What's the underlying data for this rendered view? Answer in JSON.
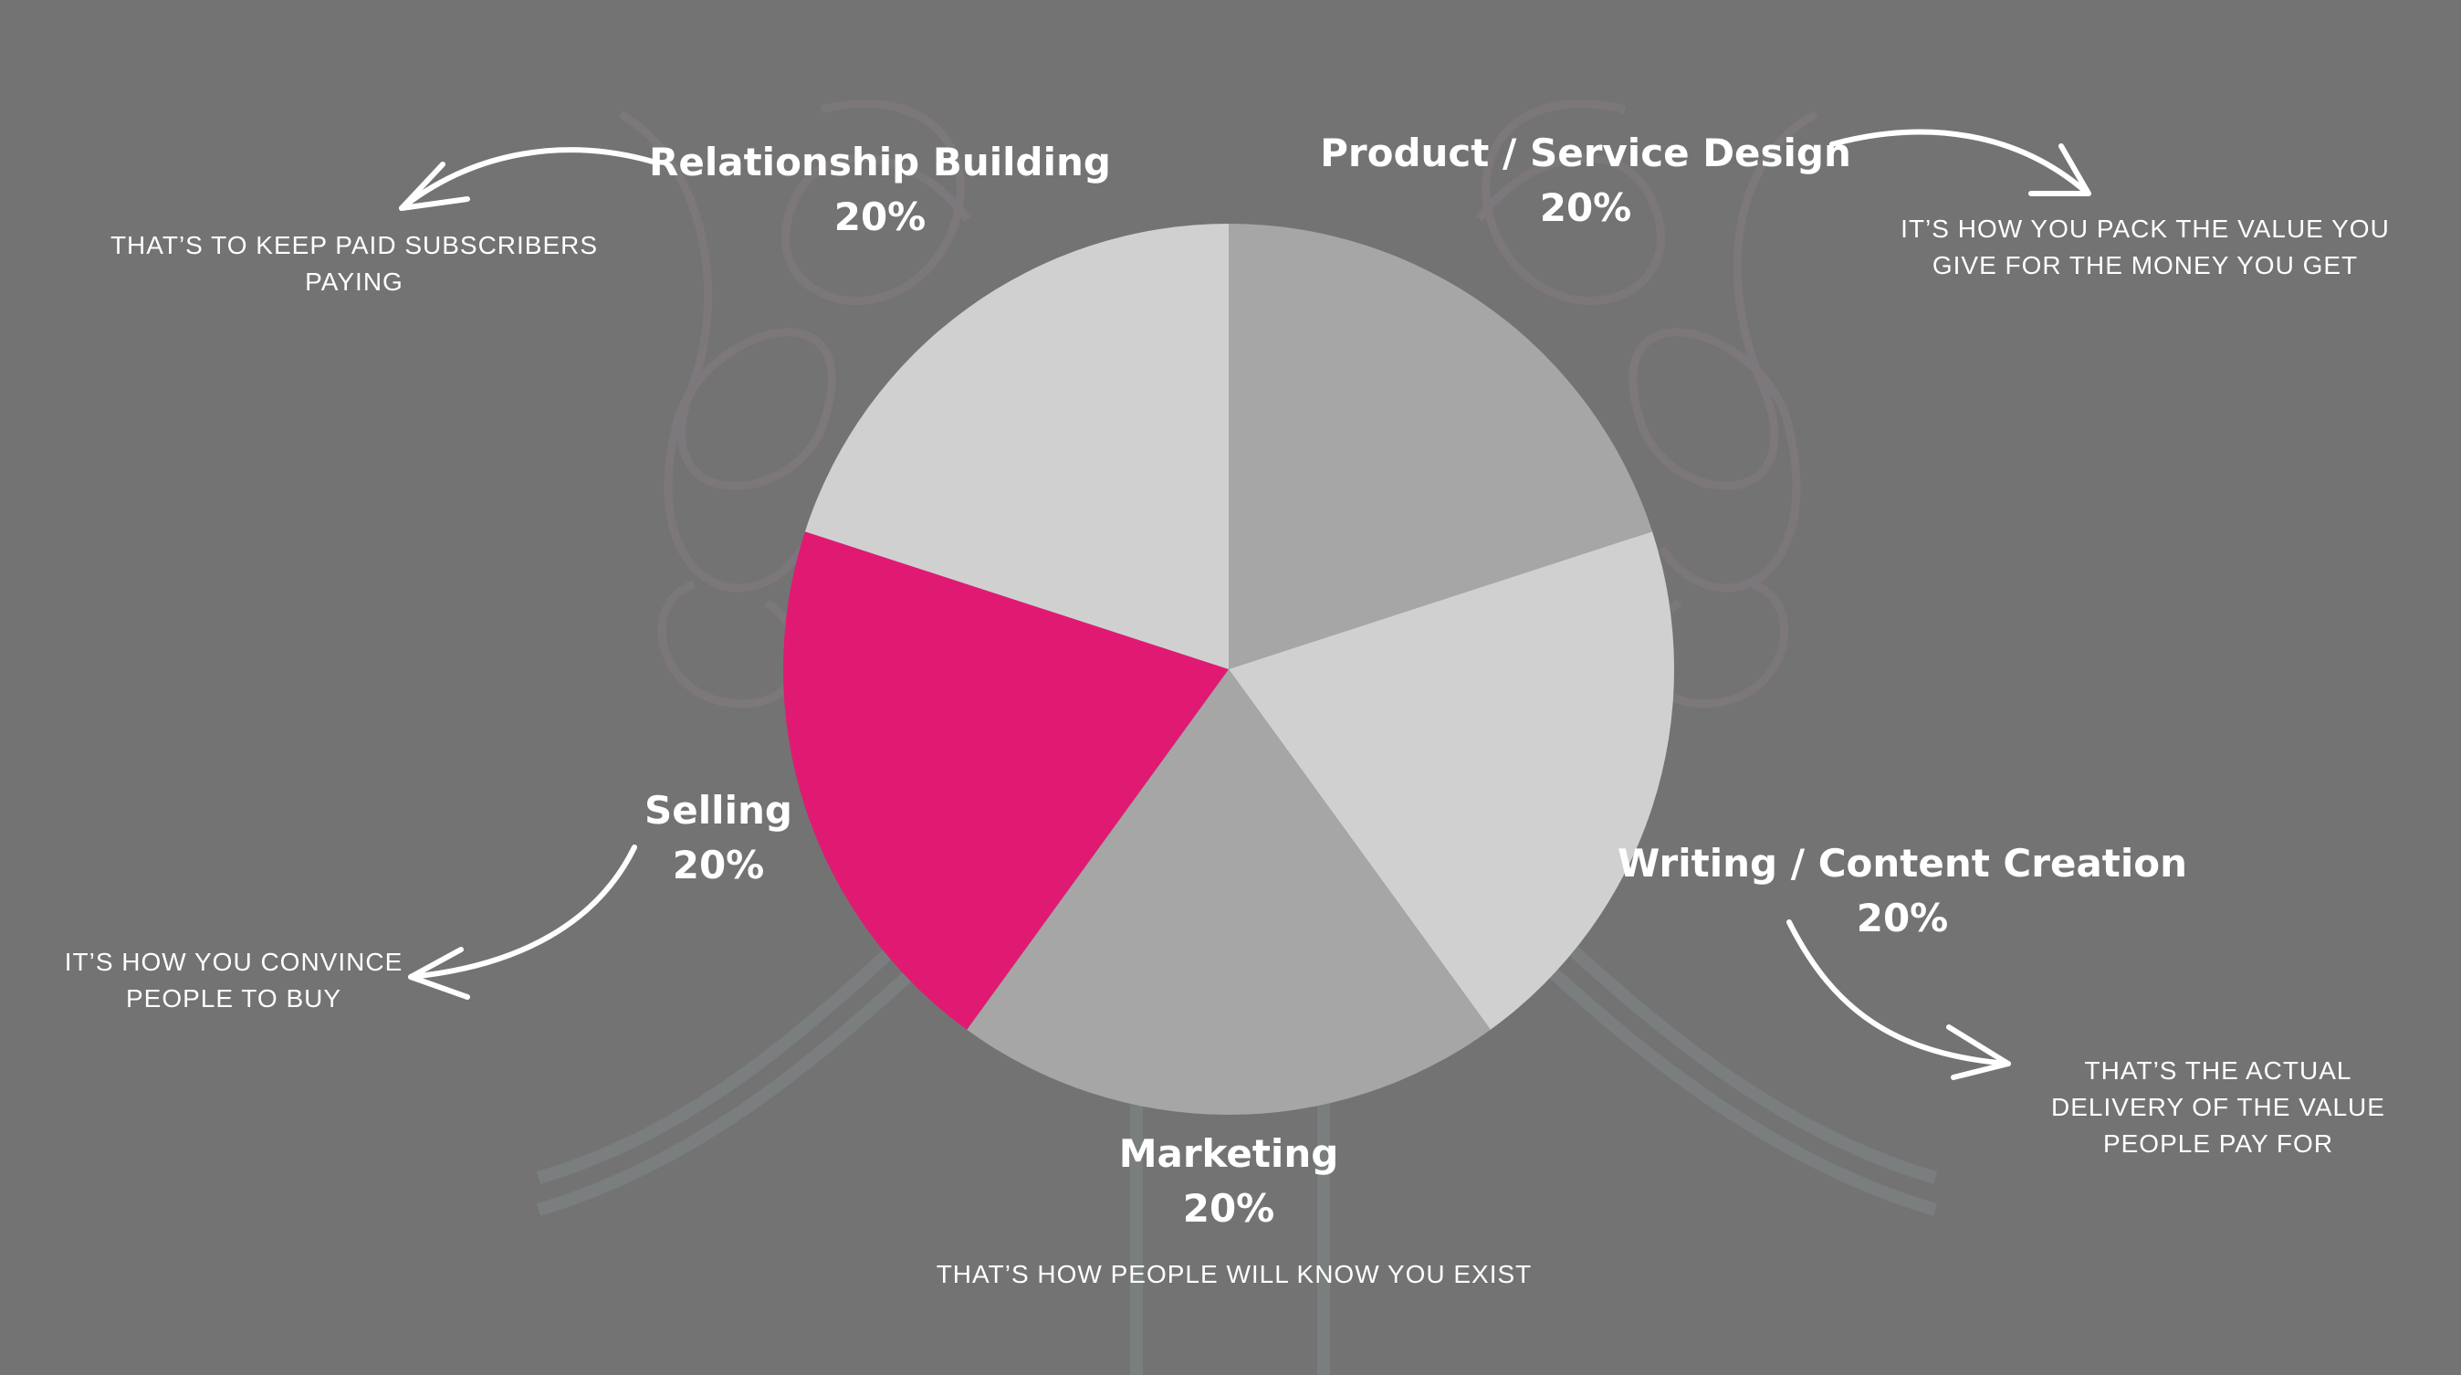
{
  "chart_data": {
    "type": "pie",
    "start": "top-clockwise",
    "slices": [
      {
        "label": "Product / Service Design",
        "value": 20,
        "value_label": "20%",
        "color": "#a6a6a6",
        "note": "IT’S HOW YOU PACK THE VALUE YOU GIVE FOR THE MONEY YOU GET"
      },
      {
        "label": "Writing / Content Creation",
        "value": 20,
        "value_label": "20%",
        "color": "#d1d0d1",
        "note": "THAT’S THE ACTUAL DELIVERY OF THE VALUE PEOPLE PAY FOR"
      },
      {
        "label": "Marketing",
        "value": 20,
        "value_label": "20%",
        "color": "#a6a6a6",
        "note": "THAT’S HOW PEOPLE WILL KNOW YOU EXIST"
      },
      {
        "label": "Selling",
        "value": 20,
        "value_label": "20%",
        "color": "#e01a73",
        "note": "IT’S HOW YOU CONVINCE PEOPLE TO BUY"
      },
      {
        "label": "Relationship Building",
        "value": 20,
        "value_label": "20%",
        "color": "#d1d0d1",
        "note": "THAT’S TO KEEP PAID SUBSCRIBERS PAYING"
      }
    ]
  },
  "colors": {
    "background": "#737373",
    "text": "#ffffff",
    "accent": "#e01a73",
    "decoration": "#8c7f86"
  }
}
